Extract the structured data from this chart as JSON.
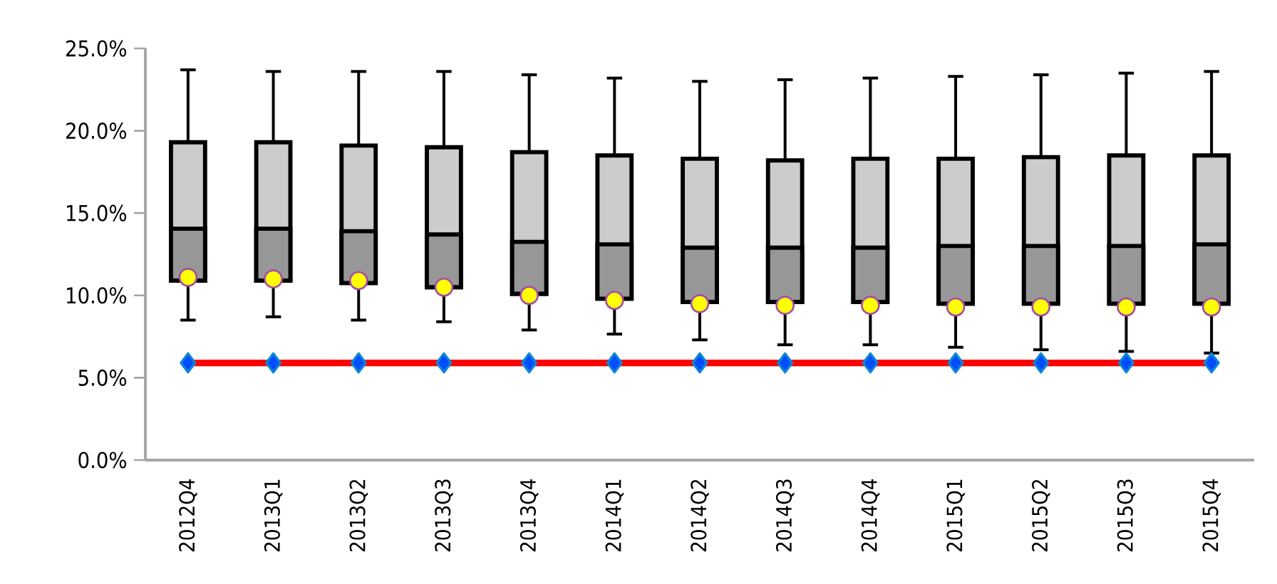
{
  "chart_data": {
    "type": "box",
    "categories": [
      "2012Q4",
      "2013Q1",
      "2013Q2",
      "2013Q3",
      "2013Q4",
      "2014Q1",
      "2014Q2",
      "2014Q3",
      "2014Q4",
      "2015Q1",
      "2015Q2",
      "2015Q3",
      "2015Q4"
    ],
    "ylim": [
      0,
      25
    ],
    "yticks": [
      {
        "value": 0,
        "label": "0.0%"
      },
      {
        "value": 5,
        "label": "5.0%"
      },
      {
        "value": 10,
        "label": "10.0%"
      },
      {
        "value": 15,
        "label": "15.0%"
      },
      {
        "value": 20,
        "label": "20.0%"
      },
      {
        "value": 25,
        "label": "25.0%"
      }
    ],
    "series": [
      {
        "color": "#cccccc",
        "boxes": [
          {
            "low": 8.5,
            "q1": 10.9,
            "median": 14.05,
            "q3": 19.3,
            "high": 23.7
          },
          {
            "low": 8.7,
            "q1": 10.9,
            "median": 14.05,
            "q3": 19.3,
            "high": 23.6
          },
          {
            "low": 8.5,
            "q1": 10.75,
            "median": 13.9,
            "q3": 19.1,
            "high": 23.6
          },
          {
            "low": 8.4,
            "q1": 10.5,
            "median": 13.7,
            "q3": 19.0,
            "high": 23.6
          },
          {
            "low": 7.9,
            "q1": 10.1,
            "median": 13.25,
            "q3": 18.7,
            "high": 23.4
          },
          {
            "low": 7.65,
            "q1": 9.8,
            "median": 13.1,
            "q3": 18.5,
            "high": 23.2
          },
          {
            "low": 7.3,
            "q1": 9.6,
            "median": 12.9,
            "q3": 18.3,
            "high": 23.0
          },
          {
            "low": 7.0,
            "q1": 9.6,
            "median": 12.9,
            "q3": 18.2,
            "high": 23.1
          },
          {
            "low": 7.0,
            "q1": 9.6,
            "median": 12.9,
            "q3": 18.3,
            "high": 23.2
          },
          {
            "low": 6.85,
            "q1": 9.5,
            "median": 13.0,
            "q3": 18.3,
            "high": 23.3
          },
          {
            "low": 6.7,
            "q1": 9.5,
            "median": 13.0,
            "q3": 18.4,
            "high": 23.4
          },
          {
            "low": 6.6,
            "q1": 9.5,
            "median": 13.0,
            "q3": 18.5,
            "high": 23.5
          },
          {
            "low": 6.5,
            "q1": 9.5,
            "median": 13.1,
            "q3": 18.5,
            "high": 23.6
          }
        ]
      },
      {
        "type": "scatter",
        "color": "#ffff00",
        "marker": "circle",
        "values": [
          11.1,
          11.0,
          10.9,
          10.5,
          10.0,
          9.7,
          9.5,
          9.4,
          9.4,
          9.3,
          9.3,
          9.3,
          9.3
        ]
      },
      {
        "type": "line",
        "color": "#ff0000",
        "marker": "diamond",
        "line_style": "solid",
        "values": [
          5.9,
          5.9,
          5.9,
          5.9,
          5.9,
          5.9,
          5.9,
          5.9,
          5.9,
          5.9,
          5.9,
          5.9,
          5.9
        ]
      }
    ]
  }
}
